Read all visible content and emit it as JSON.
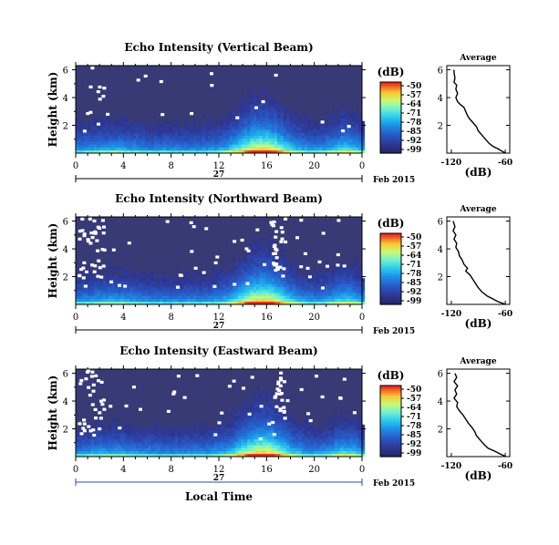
{
  "chart_data": [
    {
      "type": "heatmap",
      "title": "Echo Intensity (Vertical Beam)",
      "ylabel": "Height (km)",
      "y_ticks": [
        "6",
        "4",
        "2"
      ],
      "x_ticks": [
        "0",
        "4",
        "8",
        "12",
        "16",
        "20",
        "0"
      ],
      "date_label": "27",
      "month_label": "Feb 2015",
      "colorbar": {
        "label": "(dB)",
        "ticks": [
          "-50",
          "-57",
          "-64",
          "-71",
          "-78",
          "-85",
          "-92",
          "-99"
        ]
      },
      "profile": {
        "title": "Average",
        "xlabel": "(dB)",
        "x_ticks": [
          "-120",
          "-60"
        ],
        "y_ticks": [
          "6",
          "4",
          "2"
        ],
        "points": [
          [
            -117,
            6
          ],
          [
            -117,
            5.8
          ],
          [
            -116,
            5.4
          ],
          [
            -117,
            5.1
          ],
          [
            -114,
            4.9
          ],
          [
            -115,
            4.6
          ],
          [
            -113,
            4.3
          ],
          [
            -115,
            4.0
          ],
          [
            -113,
            3.7
          ],
          [
            -110,
            3.5
          ],
          [
            -106,
            3.3
          ],
          [
            -104,
            3.0
          ],
          [
            -102,
            2.7
          ],
          [
            -100,
            2.5
          ],
          [
            -96,
            2.2
          ],
          [
            -92,
            1.9
          ],
          [
            -90,
            1.6
          ],
          [
            -86,
            1.3
          ],
          [
            -82,
            1.0
          ],
          [
            -78,
            0.7
          ],
          [
            -74,
            0.5
          ],
          [
            -68,
            0.3
          ],
          [
            -64,
            0.15
          ],
          [
            -60,
            0
          ]
        ]
      }
    },
    {
      "type": "heatmap",
      "title": "Echo Intensity (Northward Beam)",
      "ylabel": "Height (km)",
      "y_ticks": [
        "6",
        "4",
        "2"
      ],
      "x_ticks": [
        "0",
        "4",
        "8",
        "12",
        "16",
        "20",
        "0"
      ],
      "date_label": "27",
      "month_label": "Feb 2015",
      "colorbar": {
        "label": "(dB)",
        "ticks": [
          "-50",
          "-57",
          "-64",
          "-71",
          "-78",
          "-85",
          "-92",
          "-99"
        ]
      },
      "profile": {
        "title": "Average",
        "xlabel": "(dB)",
        "x_ticks": [
          "-120",
          "-60"
        ],
        "y_ticks": [
          "6",
          "4",
          "2"
        ],
        "points": [
          [
            -118,
            6
          ],
          [
            -116,
            5.6
          ],
          [
            -118,
            5.3
          ],
          [
            -115,
            5.0
          ],
          [
            -117,
            4.7
          ],
          [
            -114,
            4.4
          ],
          [
            -115,
            4.1
          ],
          [
            -112,
            3.8
          ],
          [
            -111,
            3.5
          ],
          [
            -108,
            3.2
          ],
          [
            -106,
            2.9
          ],
          [
            -102,
            2.6
          ],
          [
            -104,
            2.4
          ],
          [
            -99,
            2.1
          ],
          [
            -96,
            1.8
          ],
          [
            -93,
            1.5
          ],
          [
            -90,
            1.2
          ],
          [
            -86,
            0.9
          ],
          [
            -80,
            0.6
          ],
          [
            -74,
            0.4
          ],
          [
            -68,
            0.2
          ],
          [
            -62,
            0.05
          ],
          [
            -60,
            0
          ]
        ]
      }
    },
    {
      "type": "heatmap",
      "title": "Echo Intensity (Eastward Beam)",
      "ylabel": "Height (km)",
      "y_ticks": [
        "6",
        "4",
        "2"
      ],
      "x_ticks": [
        "0",
        "4",
        "8",
        "12",
        "16",
        "20",
        "0"
      ],
      "date_label": "27",
      "month_label": "Feb 2015",
      "xlabel": "Local Time",
      "colorbar": {
        "label": "(dB)",
        "ticks": [
          "-50",
          "-57",
          "-64",
          "-71",
          "-78",
          "-85",
          "-92",
          "-99"
        ]
      },
      "profile": {
        "title": "Average",
        "xlabel": "(dB)",
        "x_ticks": [
          "-120",
          "-60"
        ],
        "y_ticks": [
          "6",
          "4",
          "2"
        ],
        "points": [
          [
            -116,
            6
          ],
          [
            -114,
            5.7
          ],
          [
            -117,
            5.4
          ],
          [
            -113,
            5.1
          ],
          [
            -116,
            4.8
          ],
          [
            -114,
            4.5
          ],
          [
            -117,
            4.2
          ],
          [
            -113,
            3.9
          ],
          [
            -114,
            3.6
          ],
          [
            -111,
            3.3
          ],
          [
            -107,
            3.0
          ],
          [
            -104,
            2.7
          ],
          [
            -101,
            2.4
          ],
          [
            -97,
            2.1
          ],
          [
            -94,
            1.8
          ],
          [
            -92,
            1.5
          ],
          [
            -88,
            1.2
          ],
          [
            -84,
            0.9
          ],
          [
            -79,
            0.6
          ],
          [
            -72,
            0.4
          ],
          [
            -66,
            0.2
          ],
          [
            -61,
            0.05
          ],
          [
            -60,
            0
          ]
        ]
      }
    }
  ]
}
